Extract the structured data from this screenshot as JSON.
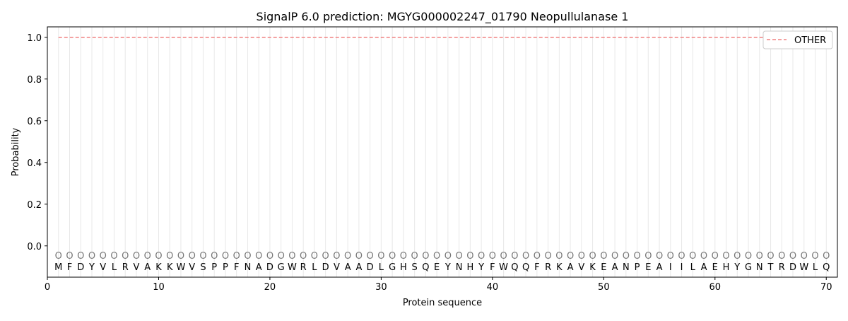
{
  "chart_data": {
    "type": "line",
    "title": "SignalP 6.0 prediction: MGYG000002247_01790 Neopullulanase 1",
    "xlabel": "Protein sequence",
    "ylabel": "Probability",
    "xlim": [
      0,
      71
    ],
    "ylim": [
      -0.15,
      1.05
    ],
    "xticks": [
      0,
      10,
      20,
      30,
      40,
      50,
      60,
      70
    ],
    "yticks": [
      0.0,
      0.2,
      0.4,
      0.6,
      0.8,
      1.0
    ],
    "ytick_labels": [
      "0.0",
      "0.2",
      "0.4",
      "0.6",
      "0.8",
      "1.0"
    ],
    "grid": "vertical lines at each residue",
    "legend_position": "top-right",
    "sequence": [
      "M",
      "F",
      "D",
      "Y",
      "V",
      "L",
      "R",
      "V",
      "A",
      "K",
      "K",
      "W",
      "V",
      "S",
      "P",
      "P",
      "F",
      "N",
      "A",
      "D",
      "G",
      "W",
      "R",
      "L",
      "D",
      "V",
      "A",
      "A",
      "D",
      "L",
      "G",
      "H",
      "S",
      "Q",
      "E",
      "Y",
      "N",
      "H",
      "Y",
      "F",
      "W",
      "Q",
      "Q",
      "F",
      "R",
      "K",
      "A",
      "V",
      "K",
      "E",
      "A",
      "N",
      "P",
      "E",
      "A",
      "I",
      "I",
      "L",
      "A",
      "E",
      "H",
      "Y",
      "G",
      "N",
      "T",
      "R",
      "D",
      "W",
      "L",
      "Q"
    ],
    "predicted_labels": "OOOOOOOOOOOOOOOOOOOOOOOOOOOOOOOOOOOOOOOOOOOOOOOOOOOOOOOOOOOOOOOOOOOOOO",
    "series": [
      {
        "name": "OTHER",
        "color": "#f08080",
        "style": "dashed",
        "x_range": [
          1,
          70
        ],
        "value": 1.0
      }
    ]
  }
}
